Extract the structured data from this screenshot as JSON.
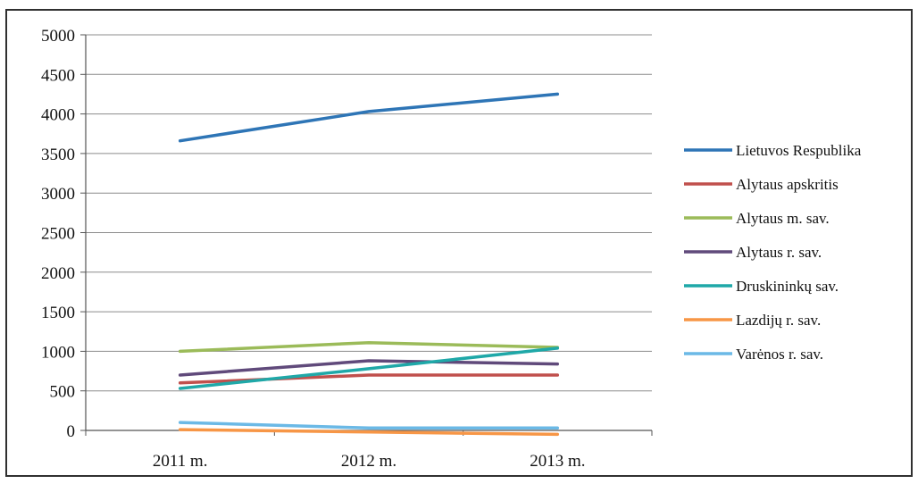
{
  "chart_data": {
    "type": "line",
    "categories": [
      "2011 m.",
      "2012 m.",
      "2013 m."
    ],
    "y_ticks": [
      "0",
      "500",
      "1000",
      "1500",
      "2000",
      "2500",
      "3000",
      "3500",
      "4000",
      "4500",
      "5000"
    ],
    "ylim": [
      0,
      5000
    ],
    "grid": true,
    "legend_position": "right",
    "series": [
      {
        "name": "Lietuvos Respublika",
        "color": "#2e75b6",
        "values": [
          3660,
          4030,
          4250
        ]
      },
      {
        "name": "Alytaus apskritis",
        "color": "#c0504d",
        "values": [
          600,
          700,
          700
        ]
      },
      {
        "name": "Alytaus m. sav.",
        "color": "#9bbb59",
        "values": [
          1000,
          1110,
          1050
        ]
      },
      {
        "name": "Alytaus r. sav.",
        "color": "#604a7b",
        "values": [
          700,
          880,
          840
        ]
      },
      {
        "name": "Druskininkų sav.",
        "color": "#1fa8a8",
        "values": [
          530,
          780,
          1040
        ]
      },
      {
        "name": "Lazdijų r. sav.",
        "color": "#f79646",
        "values": [
          10,
          -20,
          -50
        ]
      },
      {
        "name": "Varėnos r. sav.",
        "color": "#6bb9e6",
        "values": [
          100,
          30,
          30
        ]
      }
    ]
  }
}
